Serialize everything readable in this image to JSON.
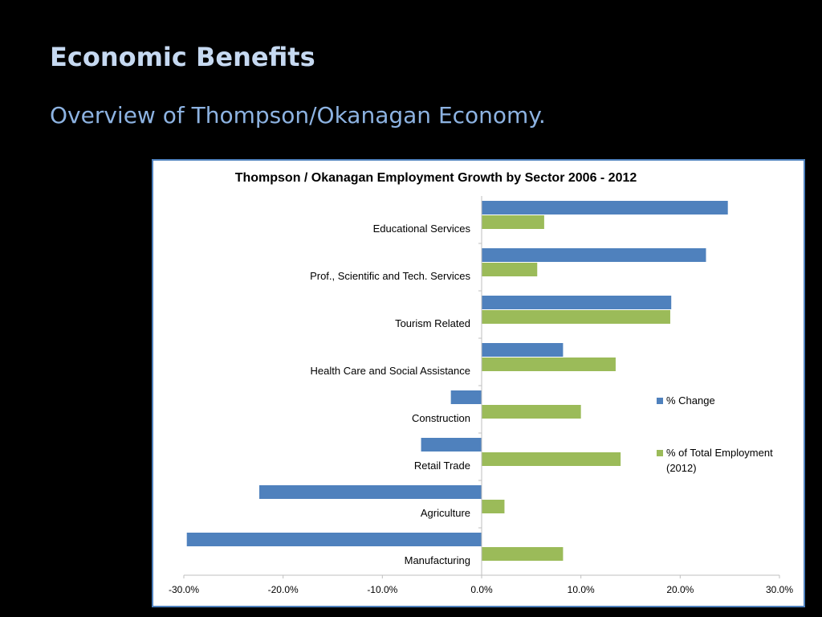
{
  "slide": {
    "title": "Economic Benefits",
    "subtitle": "Overview of Thompson/Okanagan Economy."
  },
  "colors": {
    "background": "#000000",
    "title": "#c6d9f1",
    "subtitle": "#8db3e2",
    "series_change": "#4f81bd",
    "series_employment": "#9bbb59"
  },
  "chart_data": {
    "type": "bar",
    "orientation": "horizontal",
    "title": "Thompson / Okanagan Employment  Growth by Sector  2006 - 2012",
    "categories": [
      "Educational Services",
      "Prof., Scientific and Tech. Services",
      "Tourism Related",
      "Health Care and Social Assistance",
      "Construction",
      "Retail Trade",
      "Agriculture",
      "Manufacturing"
    ],
    "series": [
      {
        "name": "% Change",
        "color": "#4f81bd",
        "values": [
          24.8,
          22.6,
          19.1,
          8.2,
          -3.1,
          -6.1,
          -22.4,
          -29.7
        ]
      },
      {
        "name": "% of Total Employment (2012)",
        "color": "#9bbb59",
        "values": [
          6.3,
          5.6,
          19.0,
          13.5,
          10.0,
          14.0,
          2.3,
          8.2
        ]
      }
    ],
    "xlim": [
      -30,
      30
    ],
    "x_ticks": [
      "-30.0%",
      "-20.0%",
      "-10.0%",
      "0.0%",
      "10.0%",
      "20.0%",
      "30.0%"
    ],
    "grid": false,
    "legend_position": "right"
  }
}
